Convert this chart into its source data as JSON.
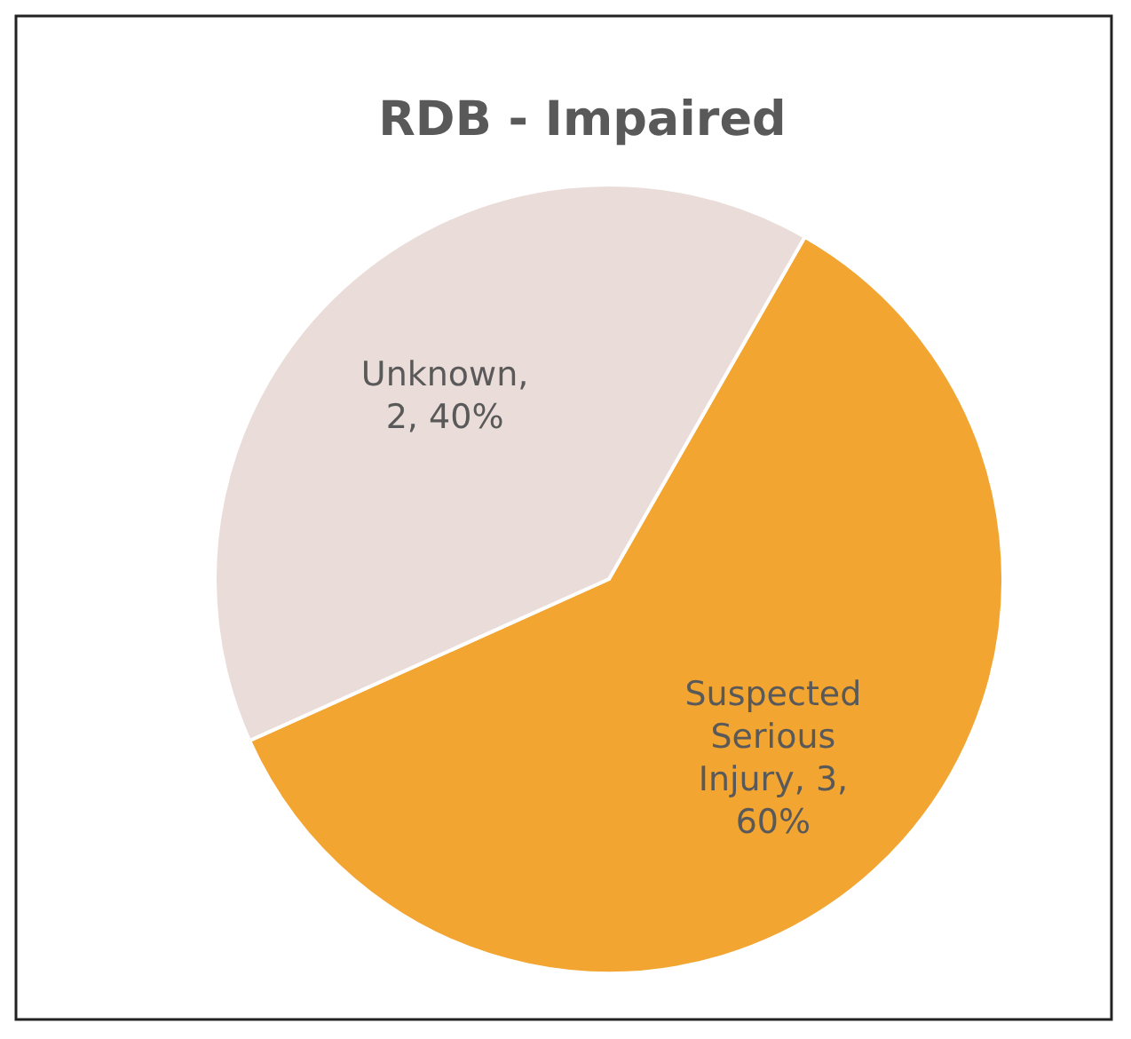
{
  "chart_data": {
    "type": "pie",
    "title": "RDB - Impaired",
    "categories": [
      "Suspected Serious Injury",
      "Unknown"
    ],
    "values": [
      3,
      2
    ],
    "colors": [
      "#f2a531",
      "#eadcd8"
    ],
    "value_labels": [
      ", 3, 60%",
      ", 2, 40%"
    ]
  }
}
